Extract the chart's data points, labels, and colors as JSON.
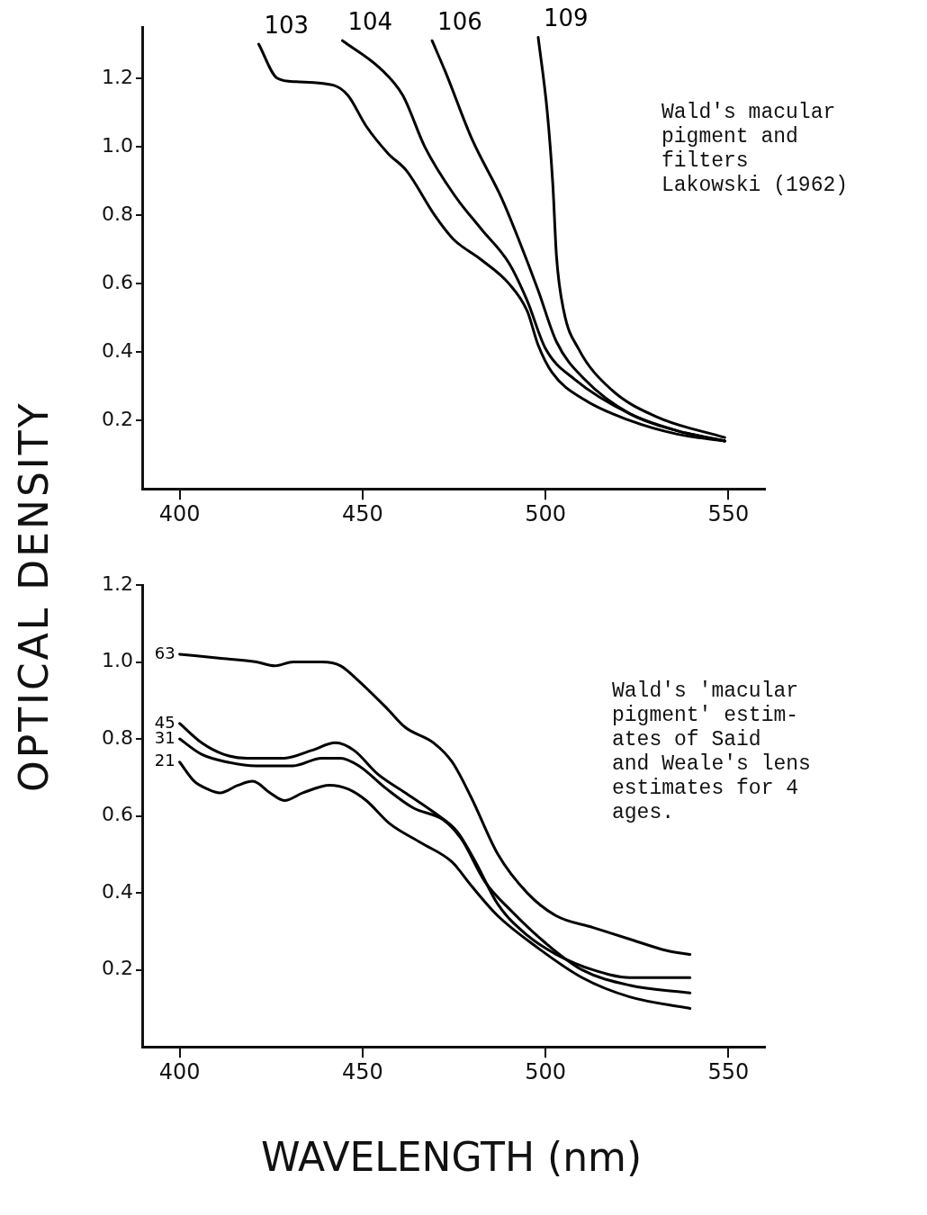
{
  "chart_data": [
    {
      "type": "line",
      "ylabel": "OPTICAL DENSITY",
      "annotations": [
        "Wald's macular\npigment and\nfilters\nLakowski (1962)"
      ],
      "xlim": [
        390,
        560
      ],
      "ylim": [
        0,
        1.35
      ],
      "xticks": [
        400,
        450,
        500,
        550
      ],
      "yticks": [
        {
          "value": 0.2,
          "label": "0.2"
        },
        {
          "value": 0.4,
          "label": "0.4"
        },
        {
          "value": 0.6,
          "label": "0.6"
        },
        {
          "value": 0.8,
          "label": "0.8"
        },
        {
          "value": 1.0,
          "label": "1.0"
        },
        {
          "value": 1.2,
          "label": "1.2"
        }
      ],
      "grid": false,
      "legend": false,
      "marker": "none",
      "line_style": "solid",
      "series": [
        {
          "name": "103",
          "color": "#000000",
          "x": [
            421.6,
            426.7,
            431.8,
            442,
            446,
            451,
            457,
            462,
            469.7,
            474.8,
            482.4,
            490,
            495,
            498,
            501.8,
            510.7,
            523,
            536,
            549
          ],
          "values": [
            1.3,
            1.2,
            1.19,
            1.18,
            1.15,
            1.06,
            0.98,
            0.93,
            0.8,
            0.73,
            0.67,
            0.6,
            0.52,
            0.42,
            0.34,
            0.26,
            0.2,
            0.16,
            0.14
          ]
        },
        {
          "name": "104",
          "color": "#000000",
          "x": [
            444.5,
            454.7,
            461,
            467,
            475,
            482.4,
            490,
            495,
            500,
            508,
            523,
            536,
            549
          ],
          "values": [
            1.31,
            1.23,
            1.15,
            1.0,
            0.86,
            0.76,
            0.66,
            0.55,
            0.41,
            0.32,
            0.22,
            0.17,
            0.14
          ]
        },
        {
          "name": "106",
          "color": "#000000",
          "x": [
            469,
            472.6,
            480,
            488,
            493,
            498,
            503,
            510.7,
            523,
            536,
            549
          ],
          "values": [
            1.31,
            1.22,
            1.02,
            0.85,
            0.72,
            0.58,
            0.43,
            0.32,
            0.22,
            0.17,
            0.14
          ]
        },
        {
          "name": "109",
          "color": "#000000",
          "x": [
            498,
            500.5,
            502,
            503,
            505,
            509,
            518,
            530.5,
            549
          ],
          "values": [
            1.32,
            1.1,
            0.89,
            0.68,
            0.52,
            0.41,
            0.29,
            0.21,
            0.15
          ]
        }
      ]
    },
    {
      "type": "line",
      "xlabel": "WAVELENGTH (nm)",
      "annotations": [
        "Wald's 'macular\npigment' estim-\nates of Said\nand Weale's lens\nestimates for 4\nages."
      ],
      "xlim": [
        390,
        560
      ],
      "ylim": [
        0,
        1.2
      ],
      "xticks": [
        400,
        450,
        500,
        550
      ],
      "yticks": [
        {
          "value": 0.2,
          "label": "0.2"
        },
        {
          "value": 0.4,
          "label": "0.4"
        },
        {
          "value": 0.6,
          "label": "0.6"
        },
        {
          "value": 0.8,
          "label": "0.8"
        },
        {
          "value": 1.0,
          "label": "1.0"
        },
        {
          "value": 1.2,
          "label": "1.2"
        }
      ],
      "grid": false,
      "legend": false,
      "marker": "none",
      "line_style": "solid",
      "series": [
        {
          "name": "63",
          "color": "#000000",
          "x": [
            400,
            410.7,
            421,
            426,
            431,
            438.8,
            444,
            449,
            456.6,
            461.7,
            469.4,
            474.5,
            479.6,
            487,
            495,
            503,
            513,
            523,
            533.2,
            539.5
          ],
          "values": [
            1.02,
            1.01,
            1.0,
            0.99,
            1.0,
            1.0,
            0.99,
            0.95,
            0.88,
            0.83,
            0.79,
            0.74,
            0.65,
            0.5,
            0.4,
            0.34,
            0.31,
            0.28,
            0.25,
            0.24
          ]
        },
        {
          "name": "45",
          "color": "#000000",
          "x": [
            400,
            406,
            412,
            418.4,
            428.6,
            436,
            442.6,
            447.7,
            454,
            461.7,
            469.4,
            475.8,
            480.9,
            487,
            495,
            503,
            513,
            523,
            539.5
          ],
          "values": [
            0.84,
            0.79,
            0.76,
            0.75,
            0.75,
            0.77,
            0.79,
            0.77,
            0.71,
            0.66,
            0.61,
            0.56,
            0.48,
            0.37,
            0.29,
            0.24,
            0.2,
            0.18,
            0.18
          ]
        },
        {
          "name": "31",
          "color": "#000000",
          "x": [
            400,
            406,
            413,
            421,
            431,
            438.8,
            444,
            449,
            456.6,
            464,
            472,
            477,
            483.4,
            491,
            500,
            510,
            523,
            539.5
          ],
          "values": [
            0.8,
            0.76,
            0.74,
            0.73,
            0.73,
            0.75,
            0.75,
            0.73,
            0.67,
            0.62,
            0.59,
            0.54,
            0.43,
            0.35,
            0.27,
            0.2,
            0.16,
            0.14
          ]
        },
        {
          "name": "21",
          "color": "#000000",
          "x": [
            400,
            404,
            407.6,
            411,
            416,
            420,
            424.7,
            428.6,
            433.7,
            441,
            446,
            451,
            457.4,
            466,
            474.5,
            479.6,
            487,
            497.5,
            510,
            523,
            539.5
          ],
          "values": [
            0.74,
            0.69,
            0.67,
            0.66,
            0.68,
            0.69,
            0.66,
            0.64,
            0.66,
            0.68,
            0.67,
            0.64,
            0.58,
            0.53,
            0.48,
            0.42,
            0.34,
            0.26,
            0.18,
            0.13,
            0.1
          ]
        }
      ]
    }
  ]
}
